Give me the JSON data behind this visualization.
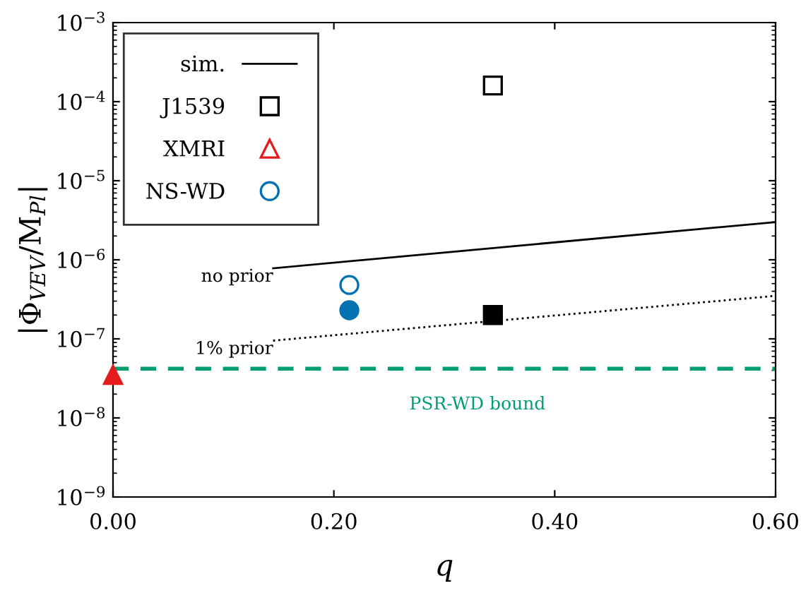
{
  "chart_data": {
    "type": "scatter",
    "xlabel": "q",
    "ylabel": "|Φ$_{VEV}$/M$_{Pl}$|",
    "log": "y",
    "xlim": [
      0,
      0.6
    ],
    "ylim": [
      1e-09,
      0.001
    ],
    "xticks": [
      {
        "value": 0,
        "label": "0.00"
      },
      {
        "value": 0.2,
        "label": "0.20"
      },
      {
        "value": 0.4,
        "label": "0.40"
      },
      {
        "value": 0.6,
        "label": "0.60"
      }
    ],
    "yticks": [
      {
        "value": 1e-09,
        "label": "10$^{−9}$"
      },
      {
        "value": 1e-08,
        "label": "10$^{−8}$"
      },
      {
        "value": 1e-07,
        "label": "10$^{−7}$"
      },
      {
        "value": 1e-06,
        "label": "10$^{−6}$"
      },
      {
        "value": 1e-05,
        "label": "10$^{−5}$"
      },
      {
        "value": 0.0001,
        "label": "10$^{−4}$"
      },
      {
        "value": 0.001,
        "label": "10$^{−3}$"
      }
    ],
    "legend": "top left",
    "grid": false,
    "series": [
      {
        "name": "sim.",
        "type": "line",
        "color": "#000000",
        "line_style": "solid",
        "marker": "none",
        "x": [
          0.145,
          0.6
        ],
        "values": [
          7.8e-07,
          3e-06
        ]
      },
      {
        "type": "line",
        "color": "#000000",
        "line_style": "dotted",
        "marker": "none",
        "x": [
          0.145,
          0.6
        ],
        "values": [
          9.5e-08,
          3.5e-07
        ]
      },
      {
        "name": "J1539",
        "color": "#000000",
        "marker": "square",
        "x": [
          0.344
        ],
        "values": [
          0.00016
        ]
      },
      {
        "color": "#000000",
        "marker": "square",
        "x": [
          0.344
        ],
        "values": [
          2e-07
        ]
      },
      {
        "name": "XMRI",
        "color": "#e41a1c",
        "marker": "triangle"
      },
      {
        "color": "#e41a1c",
        "marker": "triangle",
        "x": [
          0.0
        ],
        "values": [
          3.5e-08
        ]
      },
      {
        "name": "NS-WD",
        "color": "#0072b2",
        "marker": "circle",
        "x": [
          0.214
        ],
        "values": [
          4.8e-07
        ]
      },
      {
        "color": "#0072b2",
        "marker": "circle",
        "x": [
          0.214
        ],
        "values": [
          2.3e-07
        ]
      }
    ],
    "ref_lines": [
      {
        "axis": "y",
        "value": 4.2e-08,
        "label": "PSR-WD bound",
        "color": "#009e73",
        "line_style": "dashed"
      }
    ],
    "annotations": [
      {
        "text": "no prior",
        "x": 0.145,
        "y": 7.8e-07
      },
      {
        "text": "1% prior",
        "x": 0.145,
        "y": 9.5e-08
      }
    ]
  }
}
